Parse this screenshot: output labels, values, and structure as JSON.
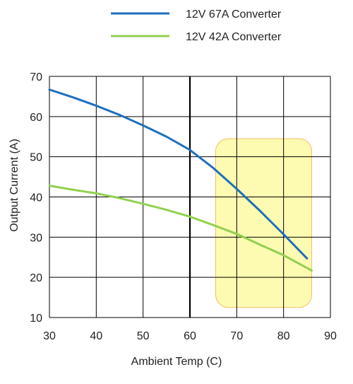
{
  "chart_data": {
    "type": "line",
    "xlabel": "Ambient Temp (C)",
    "ylabel": "Output Current (A)",
    "xlim": [
      30,
      90
    ],
    "ylim": [
      10,
      70
    ],
    "xticks": [
      30,
      40,
      50,
      60,
      70,
      80,
      90
    ],
    "yticks": [
      10,
      20,
      30,
      40,
      50,
      60,
      70
    ],
    "grid": true,
    "legend_placement": "top",
    "highlight_region": {
      "x": [
        65.5,
        86
      ],
      "y": [
        12.5,
        54.5
      ],
      "color": "#fdfba8"
    },
    "series": [
      {
        "name": "12V 67A Converter",
        "color": "#1f6fbf",
        "x": [
          30,
          35,
          40,
          45,
          50,
          55,
          60,
          65,
          70,
          75,
          80,
          85
        ],
        "y": [
          66.7,
          64.8,
          62.7,
          60.4,
          57.8,
          55.0,
          51.7,
          47.2,
          42.0,
          36.5,
          30.7,
          24.7
        ]
      },
      {
        "name": "12V 42A Converter",
        "color": "#92d050",
        "x": [
          30,
          35,
          40,
          45,
          50,
          55,
          60,
          65,
          70,
          75,
          80,
          86
        ],
        "y": [
          42.8,
          41.8,
          40.9,
          39.7,
          38.3,
          36.8,
          35.1,
          33.0,
          30.8,
          28.1,
          25.5,
          21.7
        ]
      }
    ]
  }
}
